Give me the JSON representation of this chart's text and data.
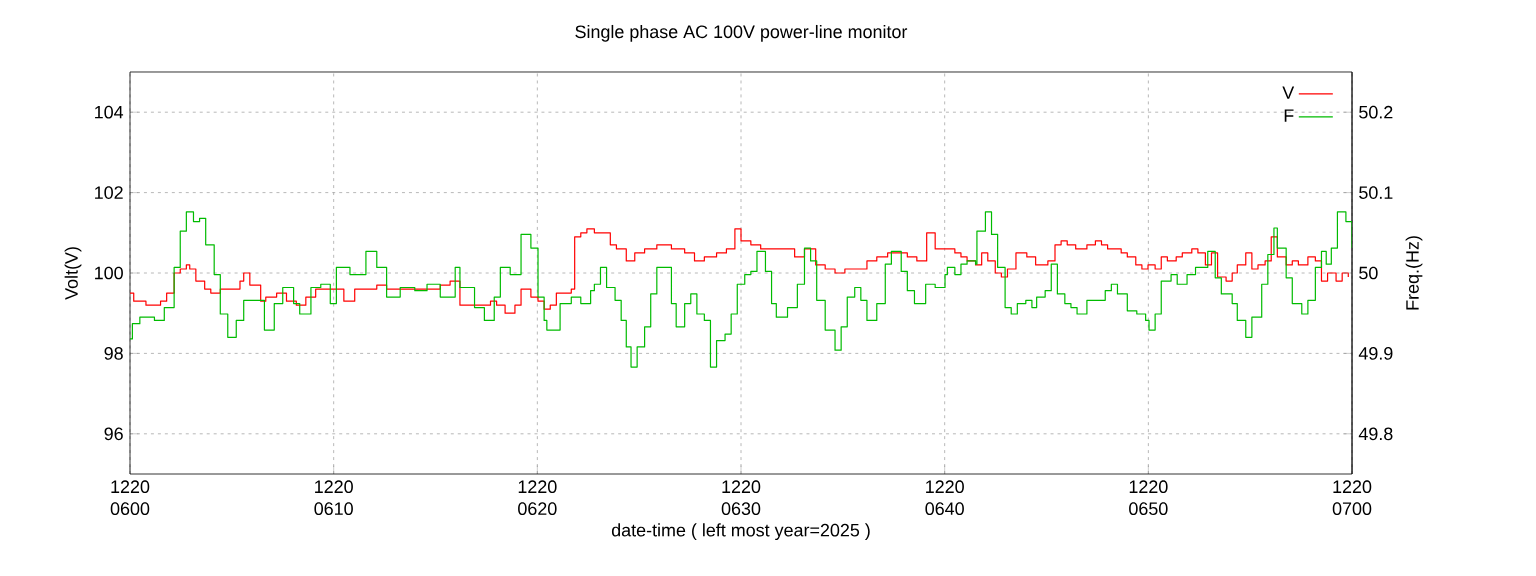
{
  "chart_data": {
    "type": "step",
    "title": "Single phase AC 100V power-line monitor",
    "xlabel": "date-time ( left most year=2025 )",
    "ylabel": "Volt(V)",
    "y2label": "Freq.(Hz)",
    "xlim": [
      "2025-12-20T06:00",
      "2025-12-20T07:00"
    ],
    "xticks": [
      {
        "value": "2025-12-20T06:00",
        "label": "1220 0600"
      },
      {
        "value": "2025-12-20T06:10",
        "label": "1220 0610"
      },
      {
        "value": "2025-12-20T06:20",
        "label": "1220 0620"
      },
      {
        "value": "2025-12-20T06:30",
        "label": "1220 0630"
      },
      {
        "value": "2025-12-20T06:40",
        "label": "1220 0640"
      },
      {
        "value": "2025-12-20T06:50",
        "label": "1220 0650"
      },
      {
        "value": "2025-12-20T07:00",
        "label": "1220 0700"
      }
    ],
    "ylim": [
      95,
      105
    ],
    "yticks": [
      96,
      98,
      100,
      102,
      104
    ],
    "y2lim": [
      49.75,
      50.25
    ],
    "y2ticks": [
      49.8,
      49.9,
      {
        "value": 50,
        "label": "50"
      },
      50.1,
      50.2
    ],
    "grid": true,
    "legend": "top right",
    "series": [
      {
        "name": "V",
        "color": "#ff0000",
        "x": [
          "2025-12-20T06:00:00",
          "2025-12-20T06:00:11",
          "2025-12-20T06:00:47",
          "2025-12-20T06:01:30",
          "2025-12-20T06:01:48",
          "2025-12-20T06:02:10",
          "2025-12-20T06:02:28",
          "2025-12-20T06:02:46",
          "2025-12-20T06:02:56",
          "2025-12-20T06:03:14",
          "2025-12-20T06:03:40",
          "2025-12-20T06:03:58",
          "2025-12-20T06:04:26",
          "2025-12-20T06:04:55",
          "2025-12-20T06:05:24",
          "2025-12-20T06:05:35",
          "2025-12-20T06:05:53",
          "2025-12-20T06:06:25",
          "2025-12-20T06:06:40",
          "2025-12-20T06:07:12",
          "2025-12-20T06:07:41",
          "2025-12-20T06:08:10",
          "2025-12-20T06:08:38",
          "2025-12-20T06:09:07",
          "2025-12-20T06:09:32",
          "2025-12-20T06:10:01",
          "2025-12-20T06:10:30",
          "2025-12-20T06:11:02",
          "2025-12-20T06:11:35",
          "2025-12-20T06:12:07",
          "2025-12-20T06:12:36",
          "2025-12-20T06:13:16",
          "2025-12-20T06:13:59",
          "2025-12-20T06:14:35",
          "2025-12-20T06:15:14",
          "2025-12-20T06:15:43",
          "2025-12-20T06:16:12",
          "2025-12-20T06:16:44",
          "2025-12-20T06:17:13",
          "2025-12-20T06:17:42",
          "2025-12-20T06:18:00",
          "2025-12-20T06:18:25",
          "2025-12-20T06:18:54",
          "2025-12-20T06:19:12",
          "2025-12-20T06:19:41",
          "2025-12-20T06:20:02",
          "2025-12-20T06:20:20",
          "2025-12-20T06:20:38",
          "2025-12-20T06:20:56",
          "2025-12-20T06:21:22",
          "2025-12-20T06:21:40",
          "2025-12-20T06:21:50",
          "2025-12-20T06:22:08",
          "2025-12-20T06:22:26",
          "2025-12-20T06:22:48",
          "2025-12-20T06:23:20",
          "2025-12-20T06:23:35",
          "2025-12-20T06:23:53",
          "2025-12-20T06:24:22",
          "2025-12-20T06:24:47",
          "2025-12-20T06:25:16",
          "2025-12-20T06:25:52",
          "2025-12-20T06:26:35",
          "2025-12-20T06:27:14",
          "2025-12-20T06:27:43",
          "2025-12-20T06:28:12",
          "2025-12-20T06:28:48",
          "2025-12-20T06:29:17",
          "2025-12-20T06:29:42",
          "2025-12-20T06:30:00",
          "2025-12-20T06:30:29",
          "2025-12-20T06:30:58",
          "2025-12-20T06:31:30",
          "2025-12-20T06:32:10",
          "2025-12-20T06:32:38",
          "2025-12-20T06:33:07",
          "2025-12-20T06:33:40",
          "2025-12-20T06:34:08",
          "2025-12-20T06:34:37",
          "2025-12-20T06:35:06",
          "2025-12-20T06:35:42",
          "2025-12-20T06:36:11",
          "2025-12-20T06:36:40",
          "2025-12-20T06:37:12",
          "2025-12-20T06:37:41",
          "2025-12-20T06:38:10",
          "2025-12-20T06:38:38",
          "2025-12-20T06:39:07",
          "2025-12-20T06:39:32",
          "2025-12-20T06:40:01",
          "2025-12-20T06:40:30",
          "2025-12-20T06:40:48",
          "2025-12-20T06:41:06",
          "2025-12-20T06:41:31",
          "2025-12-20T06:41:49",
          "2025-12-20T06:42:07",
          "2025-12-20T06:42:29",
          "2025-12-20T06:42:47",
          "2025-12-20T06:43:05",
          "2025-12-20T06:43:30",
          "2025-12-20T06:43:48",
          "2025-12-20T06:44:02",
          "2025-12-20T06:44:28",
          "2025-12-20T06:44:46",
          "2025-12-20T06:45:04",
          "2025-12-20T06:45:25",
          "2025-12-20T06:45:43",
          "2025-12-20T06:46:01",
          "2025-12-20T06:46:26",
          "2025-12-20T06:46:44",
          "2025-12-20T06:46:59",
          "2025-12-20T06:47:24",
          "2025-12-20T06:47:42",
          "2025-12-20T06:48:00",
          "2025-12-20T06:48:22",
          "2025-12-20T06:48:40",
          "2025-12-20T06:48:58",
          "2025-12-20T06:49:23",
          "2025-12-20T06:49:41",
          "2025-12-20T06:49:59",
          "2025-12-20T06:50:20",
          "2025-12-20T06:50:38",
          "2025-12-20T06:50:56",
          "2025-12-20T06:51:22",
          "2025-12-20T06:51:40",
          "2025-12-20T06:52:08",
          "2025-12-20T06:52:26",
          "2025-12-20T06:52:48",
          "2025-12-20T06:53:06",
          "2025-12-20T06:53:24",
          "2025-12-20T06:53:49",
          "2025-12-20T06:54:07",
          "2025-12-20T06:54:22",
          "2025-12-20T06:54:47",
          "2025-12-20T06:55:05",
          "2025-12-20T06:55:23",
          "2025-12-20T06:55:44",
          "2025-12-20T06:56:02",
          "2025-12-20T06:56:20",
          "2025-12-20T06:56:46",
          "2025-12-20T06:57:04",
          "2025-12-20T06:57:22",
          "2025-12-20T06:57:50",
          "2025-12-20T06:58:12",
          "2025-12-20T06:58:30",
          "2025-12-20T06:58:48",
          "2025-12-20T06:59:13",
          "2025-12-20T06:59:31",
          "2025-12-20T06:59:49"
        ],
        "values": [
          99.5,
          99.3,
          99.2,
          99.3,
          99.5,
          100.0,
          100.1,
          100.2,
          100.1,
          99.8,
          99.6,
          99.5,
          99.6,
          99.6,
          99.8,
          100.0,
          99.7,
          99.3,
          99.4,
          99.5,
          99.3,
          99.2,
          99.4,
          99.6,
          99.6,
          99.6,
          99.3,
          99.6,
          99.6,
          99.7,
          99.6,
          99.6,
          99.6,
          99.6,
          99.7,
          99.8,
          99.2,
          99.2,
          99.2,
          99.3,
          99.2,
          99.0,
          99.2,
          99.6,
          99.4,
          99.3,
          99.1,
          99.2,
          99.5,
          99.5,
          99.6,
          100.9,
          101.0,
          101.1,
          101.0,
          101.0,
          100.7,
          100.6,
          100.3,
          100.5,
          100.6,
          100.7,
          100.6,
          100.5,
          100.3,
          100.4,
          100.5,
          100.6,
          101.1,
          100.8,
          100.7,
          100.6,
          100.6,
          100.6,
          100.4,
          100.6,
          100.2,
          100.1,
          100.0,
          100.1,
          100.1,
          100.3,
          100.4,
          100.5,
          100.5,
          100.4,
          100.3,
          101.0,
          100.6,
          100.6,
          100.5,
          100.4,
          100.3,
          100.2,
          100.5,
          100.3,
          100.0,
          99.9,
          100.1,
          100.5,
          100.5,
          100.4,
          100.2,
          100.2,
          100.3,
          100.7,
          100.8,
          100.7,
          100.6,
          100.6,
          100.7,
          100.8,
          100.7,
          100.6,
          100.6,
          100.5,
          100.4,
          100.2,
          100.1,
          100.2,
          100.1,
          100.4,
          100.3,
          100.4,
          100.5,
          100.6,
          100.5,
          100.2,
          100.5,
          99.9,
          99.8,
          100.0,
          100.2,
          100.5,
          100.1,
          100.2,
          100.3,
          100.9,
          100.4,
          100.2,
          100.3,
          100.2,
          100.4,
          100.3,
          99.8,
          100.0,
          99.8,
          100.0,
          99.9
        ]
      },
      {
        "name": "F",
        "color": "#00bb00",
        "axis": "y2",
        "x": [
          "2025-12-20T06:00:00",
          "2025-12-20T06:00:07",
          "2025-12-20T06:00:29",
          "2025-12-20T06:01:12",
          "2025-12-20T06:01:41",
          "2025-12-20T06:02:10",
          "2025-12-20T06:02:28",
          "2025-12-20T06:02:46",
          "2025-12-20T06:03:07",
          "2025-12-20T06:03:25",
          "2025-12-20T06:03:43",
          "2025-12-20T06:04:08",
          "2025-12-20T06:04:26",
          "2025-12-20T06:04:48",
          "2025-12-20T06:05:13",
          "2025-12-20T06:05:35",
          "2025-12-20T06:06:07",
          "2025-12-20T06:06:36",
          "2025-12-20T06:07:05",
          "2025-12-20T06:07:30",
          "2025-12-20T06:08:02",
          "2025-12-20T06:08:20",
          "2025-12-20T06:08:53",
          "2025-12-20T06:09:22",
          "2025-12-20T06:09:50",
          "2025-12-20T06:10:08",
          "2025-12-20T06:10:48",
          "2025-12-20T06:11:35",
          "2025-12-20T06:12:07",
          "2025-12-20T06:12:36",
          "2025-12-20T06:13:16",
          "2025-12-20T06:13:59",
          "2025-12-20T06:14:35",
          "2025-12-20T06:15:14",
          "2025-12-20T06:15:58",
          "2025-12-20T06:16:12",
          "2025-12-20T06:16:55",
          "2025-12-20T06:17:24",
          "2025-12-20T06:17:53",
          "2025-12-20T06:18:11",
          "2025-12-20T06:18:40",
          "2025-12-20T06:19:12",
          "2025-12-20T06:19:41",
          "2025-12-20T06:20:02",
          "2025-12-20T06:20:20",
          "2025-12-20T06:20:28",
          "2025-12-20T06:20:49",
          "2025-12-20T06:21:07",
          "2025-12-20T06:21:40",
          "2025-12-20T06:22:08",
          "2025-12-20T06:22:37",
          "2025-12-20T06:22:48",
          "2025-12-20T06:23:06",
          "2025-12-20T06:23:24",
          "2025-12-20T06:23:49",
          "2025-12-20T06:24:07",
          "2025-12-20T06:24:22",
          "2025-12-20T06:24:36",
          "2025-12-20T06:24:54",
          "2025-12-20T06:25:16",
          "2025-12-20T06:25:34",
          "2025-12-20T06:25:52",
          "2025-12-20T06:26:17",
          "2025-12-20T06:26:35",
          "2025-12-20T06:26:49",
          "2025-12-20T06:27:14",
          "2025-12-20T06:27:32",
          "2025-12-20T06:27:50",
          "2025-12-20T06:28:12",
          "2025-12-20T06:28:30",
          "2025-12-20T06:28:48",
          "2025-12-20T06:29:13",
          "2025-12-20T06:29:31",
          "2025-12-20T06:29:49",
          "2025-12-20T06:30:11",
          "2025-12-20T06:30:29",
          "2025-12-20T06:30:47",
          "2025-12-20T06:31:12",
          "2025-12-20T06:31:30",
          "2025-12-20T06:31:44",
          "2025-12-20T06:32:17",
          "2025-12-20T06:32:46",
          "2025-12-20T06:33:07",
          "2025-12-20T06:33:25",
          "2025-12-20T06:33:43",
          "2025-12-20T06:34:08",
          "2025-12-20T06:34:37",
          "2025-12-20T06:34:55",
          "2025-12-20T06:35:13",
          "2025-12-20T06:35:35",
          "2025-12-20T06:35:53",
          "2025-12-20T06:36:11",
          "2025-12-20T06:36:40",
          "2025-12-20T06:37:05",
          "2025-12-20T06:37:23",
          "2025-12-20T06:37:52",
          "2025-12-20T06:38:10",
          "2025-12-20T06:38:31",
          "2025-12-20T06:39:04",
          "2025-12-20T06:39:32",
          "2025-12-20T06:40:01",
          "2025-12-20T06:40:08",
          "2025-12-20T06:40:30",
          "2025-12-20T06:40:48",
          "2025-12-20T06:41:06",
          "2025-12-20T06:41:31",
          "2025-12-20T06:41:35",
          "2025-12-20T06:42:00",
          "2025-12-20T06:42:18",
          "2025-12-20T06:42:36",
          "2025-12-20T06:42:58",
          "2025-12-20T06:43:16",
          "2025-12-20T06:43:34",
          "2025-12-20T06:43:59",
          "2025-12-20T06:44:17",
          "2025-12-20T06:44:31",
          "2025-12-20T06:44:56",
          "2025-12-20T06:45:14",
          "2025-12-20T06:45:32",
          "2025-12-20T06:45:54",
          "2025-12-20T06:46:12",
          "2025-12-20T06:46:30",
          "2025-12-20T06:46:59",
          "2025-12-20T06:47:24",
          "2025-12-20T06:47:53",
          "2025-12-20T06:48:11",
          "2025-12-20T06:48:29",
          "2025-12-20T06:48:58",
          "2025-12-20T06:49:26",
          "2025-12-20T06:49:52",
          "2025-12-20T06:50:02",
          "2025-12-20T06:50:20",
          "2025-12-20T06:50:38",
          "2025-12-20T06:51:07",
          "2025-12-20T06:51:25",
          "2025-12-20T06:51:54",
          "2025-12-20T06:52:19",
          "2025-12-20T06:52:48",
          "2025-12-20T06:52:55",
          "2025-12-20T06:53:17",
          "2025-12-20T06:53:35",
          "2025-12-20T06:54:07",
          "2025-12-20T06:54:22",
          "2025-12-20T06:54:47",
          "2025-12-20T06:55:05",
          "2025-12-20T06:55:34",
          "2025-12-20T06:55:52",
          "2025-12-20T06:56:10",
          "2025-12-20T06:56:20",
          "2025-12-20T06:56:46",
          "2025-12-20T06:57:04",
          "2025-12-20T06:57:32",
          "2025-12-20T06:57:50",
          "2025-12-20T06:58:12",
          "2025-12-20T06:58:30",
          "2025-12-20T06:58:44",
          "2025-12-20T06:58:59",
          "2025-12-20T06:59:17",
          "2025-12-20T06:59:42",
          "2025-12-20T07:00:00"
        ],
        "values": [
          49.918,
          49.937,
          49.945,
          49.941,
          49.957,
          50.007,
          50.052,
          50.076,
          50.064,
          50.068,
          50.035,
          49.998,
          49.949,
          49.92,
          49.941,
          49.966,
          49.966,
          49.929,
          49.962,
          49.982,
          49.962,
          49.949,
          49.982,
          49.986,
          49.962,
          50.007,
          49.998,
          50.027,
          50.007,
          49.97,
          49.982,
          49.978,
          49.986,
          49.97,
          50.007,
          49.982,
          49.957,
          49.941,
          49.97,
          50.007,
          49.998,
          50.048,
          50.031,
          49.97,
          49.941,
          49.929,
          49.929,
          49.962,
          49.97,
          49.962,
          49.978,
          49.986,
          50.007,
          49.982,
          49.966,
          49.941,
          49.908,
          49.883,
          49.908,
          49.933,
          49.974,
          50.007,
          50.007,
          49.962,
          49.933,
          49.962,
          49.974,
          49.949,
          49.941,
          49.883,
          49.916,
          49.924,
          49.949,
          49.986,
          49.998,
          50.002,
          50.027,
          50.002,
          49.962,
          49.945,
          49.957,
          49.986,
          50.031,
          50.015,
          49.966,
          49.929,
          49.904,
          49.933,
          49.97,
          49.982,
          49.966,
          49.941,
          49.962,
          50.011,
          50.027,
          50.002,
          49.978,
          49.962,
          49.986,
          49.982,
          49.998,
          50.007,
          49.998,
          50.011,
          50.015,
          50.011,
          50.052,
          50.076,
          50.048,
          50.007,
          49.957,
          49.949,
          49.962,
          49.966,
          49.957,
          49.97,
          49.978,
          50.011,
          49.974,
          49.962,
          49.957,
          49.949,
          49.966,
          49.966,
          49.978,
          49.986,
          49.974,
          49.953,
          49.949,
          49.941,
          49.929,
          49.949,
          49.99,
          49.998,
          49.986,
          49.998,
          50.007,
          50.007,
          50.027,
          49.994,
          49.974,
          49.962,
          49.941,
          49.92,
          49.945,
          49.986,
          50.023,
          50.056,
          50.031,
          49.994,
          49.962,
          49.949,
          49.966,
          50.007,
          50.027,
          50.011,
          50.031,
          50.076,
          50.064,
          50.031
        ]
      }
    ]
  }
}
